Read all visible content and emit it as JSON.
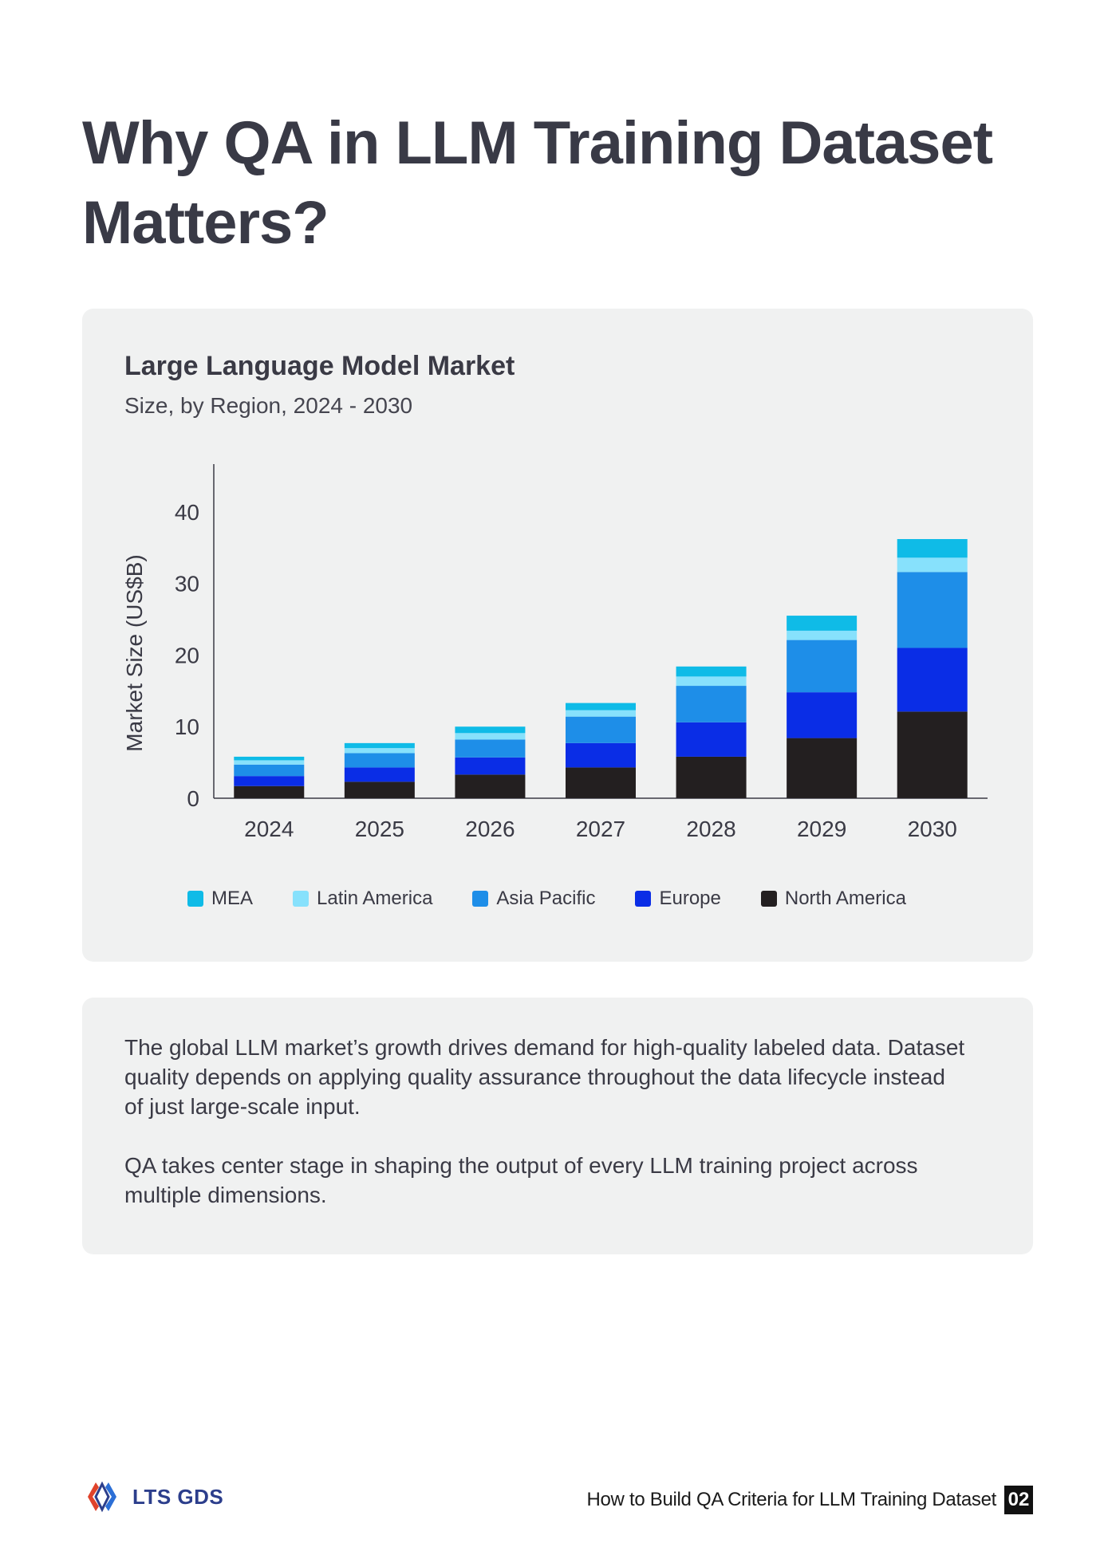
{
  "title": "Why QA in LLM Training Dataset Matters?",
  "chart_data": {
    "type": "bar",
    "stacked": true,
    "title": "Large Language Model Market",
    "subtitle": "Size, by Region, 2024 - 2030",
    "ylabel": "Market Size (US$B)",
    "xlabel": "",
    "ylim": [
      0,
      45
    ],
    "yticks": [
      0,
      10,
      20,
      30,
      40
    ],
    "categories": [
      "2024",
      "2025",
      "2026",
      "2027",
      "2028",
      "2029",
      "2030"
    ],
    "series": [
      {
        "name": "North America",
        "color": "#231f20",
        "values": [
          1.7,
          2.3,
          3.3,
          4.3,
          5.8,
          8.4,
          12.1
        ]
      },
      {
        "name": "Europe",
        "color": "#0a2de6",
        "values": [
          1.4,
          2.0,
          2.4,
          3.4,
          4.8,
          6.4,
          8.9
        ]
      },
      {
        "name": "Asia Pacific",
        "color": "#1e8ee8",
        "values": [
          1.6,
          2.0,
          2.5,
          3.7,
          5.1,
          7.3,
          10.6
        ]
      },
      {
        "name": "Latin America",
        "color": "#87e1fc",
        "values": [
          0.6,
          0.7,
          0.9,
          0.9,
          1.3,
          1.3,
          2.0
        ]
      },
      {
        "name": "MEA",
        "color": "#0fbbe7",
        "values": [
          0.5,
          0.7,
          0.9,
          1.0,
          1.4,
          2.1,
          2.6
        ]
      }
    ],
    "legend_order": [
      "MEA",
      "Latin America",
      "Asia Pacific",
      "Europe",
      "North America"
    ],
    "legend_position": "bottom",
    "grid": false
  },
  "body": {
    "paragraph1": "The global LLM market’s growth drives demand for high-quality labeled data. Dataset quality depends on applying quality assurance throughout the data lifecycle instead of just large-scale input.",
    "paragraph2": "QA takes center stage in shaping the output of every LLM training project across multiple dimensions."
  },
  "footer": {
    "logo_text": "LTS GDS",
    "doc_title": "How to Build QA Criteria for LLM Training Dataset",
    "page_number": "02"
  }
}
